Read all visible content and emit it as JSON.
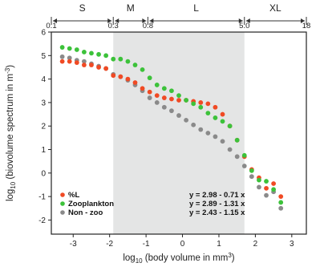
{
  "chart_data": {
    "type": "scatter",
    "xlabel": {
      "prefix": "log",
      "sub": "10",
      "text": " (body volume in mm",
      "sup": "3",
      "end": ")"
    },
    "ylabel": {
      "prefix": "log",
      "sub": "10",
      "text": " (biovolume spectrum in m",
      "sup": "-3",
      "end": ")"
    },
    "xlim": [
      -3.6,
      3.4
    ],
    "ylim": [
      -2.6,
      6.0
    ],
    "x_ticks": [
      -3,
      -2,
      -1,
      0,
      1,
      2,
      3
    ],
    "y_ticks": [
      -2,
      -1,
      0,
      1,
      2,
      3,
      4,
      5,
      6
    ],
    "shaded_region": [
      -1.9,
      1.7
    ],
    "size_classes": [
      {
        "label": "S",
        "from": -3.6,
        "to": -1.9
      },
      {
        "label": "M",
        "from": -1.9,
        "to": -0.95
      },
      {
        "label": "L",
        "from": -0.95,
        "to": 1.7
      },
      {
        "label": "XL",
        "from": 1.7,
        "to": 3.4
      }
    ],
    "size_boundaries": [
      {
        "label": "0.1",
        "x": -3.6
      },
      {
        "label": "0.3",
        "x": -1.9
      },
      {
        "label": "0.8",
        "x": -0.95
      },
      {
        "label": "5.0",
        "x": 1.7
      },
      {
        "label": "18",
        "x": 3.4
      }
    ],
    "series": [
      {
        "name": "%L",
        "color": "#f04a24",
        "equation": "y = 2.98 - 0.71 x",
        "x": [
          -3.3,
          -3.1,
          -2.9,
          -2.7,
          -2.5,
          -2.3,
          -2.1,
          -1.9,
          -1.7,
          -1.5,
          -1.3,
          -1.1,
          -0.9,
          -0.7,
          -0.5,
          -0.3,
          -0.1,
          0.1,
          0.3,
          0.5,
          0.7,
          0.9,
          1.1,
          1.3,
          1.5,
          1.7,
          1.9,
          2.1,
          2.3,
          2.5,
          2.7
        ],
        "y": [
          4.75,
          4.75,
          4.7,
          4.6,
          4.6,
          4.5,
          4.45,
          4.15,
          4.1,
          4.0,
          3.85,
          3.6,
          3.45,
          3.3,
          3.2,
          3.15,
          3.1,
          3.1,
          3.05,
          3.0,
          2.95,
          2.8,
          2.5,
          2.0,
          1.4,
          0.7,
          0.15,
          -0.2,
          -0.65,
          -0.45,
          -1.0
        ]
      },
      {
        "name": "Zooplankton",
        "color": "#3cc23a",
        "equation": "y = 2.89 - 1.31 x",
        "x": [
          -3.3,
          -3.1,
          -2.9,
          -2.7,
          -2.5,
          -2.3,
          -2.1,
          -1.9,
          -1.7,
          -1.5,
          -1.3,
          -1.1,
          -0.9,
          -0.7,
          -0.5,
          -0.3,
          -0.1,
          0.1,
          0.3,
          0.5,
          0.7,
          0.9,
          1.1,
          1.3,
          1.5,
          1.7,
          1.9,
          2.1,
          2.3,
          2.5,
          2.7
        ],
        "y": [
          5.35,
          5.3,
          5.25,
          5.15,
          5.1,
          5.05,
          5.0,
          4.85,
          4.85,
          4.75,
          4.6,
          4.4,
          4.05,
          3.75,
          3.6,
          3.5,
          3.3,
          3.1,
          2.95,
          2.8,
          2.55,
          2.35,
          2.2,
          2.0,
          1.4,
          0.75,
          0.1,
          -0.3,
          -0.35,
          -0.7,
          -1.25
        ]
      },
      {
        "name": "Non - zoo",
        "color": "#8a8a8a",
        "equation": "y = 2.43 - 1.15 x",
        "x": [
          -3.3,
          -3.1,
          -2.9,
          -2.7,
          -2.5,
          -2.3,
          -2.1,
          -1.9,
          -1.7,
          -1.5,
          -1.3,
          -1.1,
          -0.9,
          -0.7,
          -0.5,
          -0.3,
          -0.1,
          0.1,
          0.3,
          0.5,
          0.7,
          0.9,
          1.1,
          1.3,
          1.5,
          1.7,
          1.9,
          2.1,
          2.3,
          2.5,
          2.7
        ],
        "y": [
          4.95,
          4.9,
          4.8,
          4.75,
          4.65,
          4.55,
          4.45,
          4.2,
          4.1,
          3.95,
          3.75,
          3.5,
          3.2,
          3.0,
          2.8,
          2.65,
          2.45,
          2.25,
          2.05,
          1.85,
          1.7,
          1.55,
          1.35,
          1.0,
          0.7,
          0.3,
          -0.15,
          -0.6,
          -0.95,
          -0.8,
          -1.5
        ]
      }
    ],
    "legend_position": "bottom-left"
  }
}
